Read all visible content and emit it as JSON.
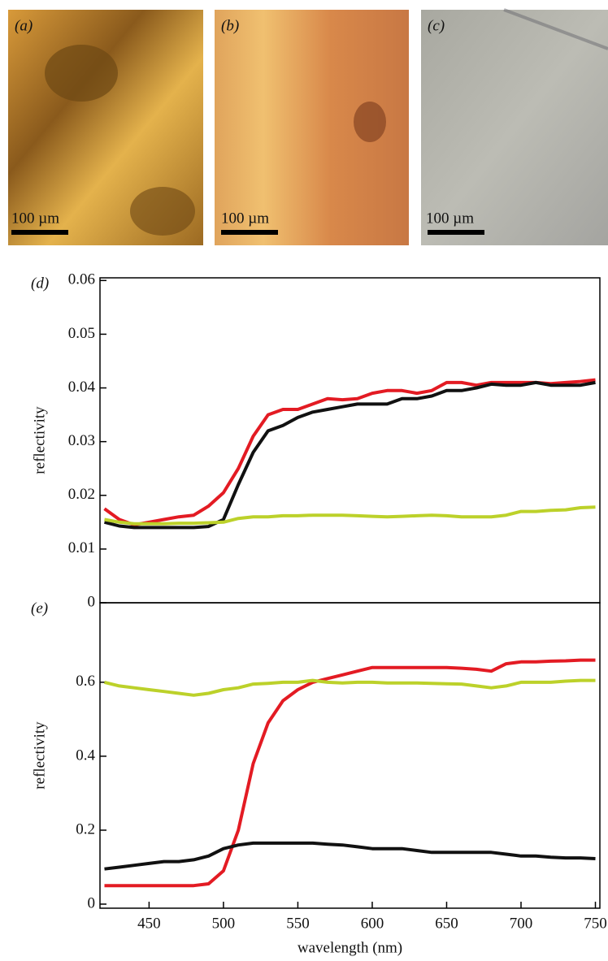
{
  "panels": [
    {
      "label": "(a)",
      "scale_bar": "100 µm"
    },
    {
      "label": "(b)",
      "scale_bar": "100 µm"
    },
    {
      "label": "(c)",
      "scale_bar": "100 µm"
    }
  ],
  "chart_data": [
    {
      "type": "line",
      "panel_label": "(d)",
      "y_label": "reflectivity",
      "x": [
        420,
        430,
        440,
        450,
        460,
        470,
        480,
        490,
        500,
        510,
        520,
        530,
        540,
        550,
        560,
        570,
        580,
        590,
        600,
        610,
        620,
        630,
        640,
        650,
        660,
        670,
        680,
        690,
        700,
        710,
        720,
        730,
        740,
        750
      ],
      "xlim": [
        417,
        753
      ],
      "ylim": [
        0,
        0.0605
      ],
      "yticks": [
        0,
        0.01,
        0.02,
        0.03,
        0.04,
        0.05,
        0.06
      ],
      "series": [
        {
          "color": "#e31b23",
          "values": [
            0.0175,
            0.0155,
            0.0145,
            0.015,
            0.0155,
            0.016,
            0.0163,
            0.018,
            0.0205,
            0.025,
            0.031,
            0.035,
            0.036,
            0.036,
            0.037,
            0.038,
            0.0378,
            0.038,
            0.039,
            0.0395,
            0.0395,
            0.039,
            0.0395,
            0.041,
            0.041,
            0.0405,
            0.041,
            0.041,
            0.041,
            0.041,
            0.0408,
            0.041,
            0.0412,
            0.0415
          ]
        },
        {
          "color": "#111111",
          "values": [
            0.015,
            0.0143,
            0.014,
            0.014,
            0.014,
            0.014,
            0.014,
            0.0142,
            0.0155,
            0.022,
            0.028,
            0.032,
            0.033,
            0.0345,
            0.0355,
            0.036,
            0.0365,
            0.037,
            0.037,
            0.037,
            0.038,
            0.038,
            0.0385,
            0.0395,
            0.0395,
            0.04,
            0.0407,
            0.0405,
            0.0405,
            0.041,
            0.0405,
            0.0405,
            0.0405,
            0.041
          ]
        },
        {
          "color": "#bcd12a",
          "values": [
            0.0155,
            0.015,
            0.0147,
            0.0147,
            0.0147,
            0.0148,
            0.0148,
            0.0149,
            0.015,
            0.0157,
            0.016,
            0.016,
            0.0162,
            0.0162,
            0.0163,
            0.0163,
            0.0163,
            0.0162,
            0.0161,
            0.016,
            0.0161,
            0.0162,
            0.0163,
            0.0162,
            0.016,
            0.016,
            0.016,
            0.0163,
            0.017,
            0.017,
            0.0172,
            0.0173,
            0.0177,
            0.0178
          ]
        }
      ]
    },
    {
      "type": "line",
      "panel_label": "(e)",
      "y_label": "reflectivity",
      "x_label": "wavelength (nm)",
      "x": [
        420,
        430,
        440,
        450,
        460,
        470,
        480,
        490,
        500,
        510,
        520,
        530,
        540,
        550,
        560,
        570,
        580,
        590,
        600,
        610,
        620,
        630,
        640,
        650,
        660,
        670,
        680,
        690,
        700,
        710,
        720,
        730,
        740,
        750
      ],
      "xlim": [
        417,
        753
      ],
      "ylim": [
        -0.011,
        0.815
      ],
      "xticks": [
        450,
        500,
        550,
        600,
        650,
        700,
        750
      ],
      "yticks": [
        0,
        0.2,
        0.4,
        0.6
      ],
      "series": [
        {
          "color": "#e31b23",
          "values": [
            0.05,
            0.05,
            0.05,
            0.05,
            0.05,
            0.05,
            0.05,
            0.055,
            0.09,
            0.2,
            0.38,
            0.49,
            0.55,
            0.58,
            0.6,
            0.61,
            0.62,
            0.63,
            0.64,
            0.64,
            0.64,
            0.64,
            0.64,
            0.64,
            0.638,
            0.635,
            0.63,
            0.65,
            0.655,
            0.655,
            0.657,
            0.658,
            0.66,
            0.66
          ]
        },
        {
          "color": "#111111",
          "values": [
            0.095,
            0.1,
            0.105,
            0.11,
            0.115,
            0.115,
            0.12,
            0.13,
            0.15,
            0.16,
            0.165,
            0.165,
            0.165,
            0.165,
            0.165,
            0.162,
            0.16,
            0.155,
            0.15,
            0.15,
            0.15,
            0.145,
            0.14,
            0.14,
            0.14,
            0.14,
            0.14,
            0.135,
            0.13,
            0.13,
            0.127,
            0.125,
            0.125,
            0.123
          ]
        },
        {
          "color": "#bcd12a",
          "values": [
            0.6,
            0.59,
            0.585,
            0.58,
            0.575,
            0.57,
            0.565,
            0.57,
            0.58,
            0.585,
            0.595,
            0.597,
            0.6,
            0.6,
            0.605,
            0.6,
            0.598,
            0.6,
            0.6,
            0.598,
            0.598,
            0.598,
            0.597,
            0.596,
            0.595,
            0.59,
            0.585,
            0.59,
            0.6,
            0.6,
            0.6,
            0.603,
            0.605,
            0.605
          ]
        }
      ]
    }
  ]
}
